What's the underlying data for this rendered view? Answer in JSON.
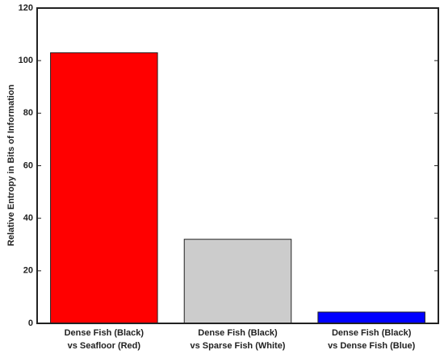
{
  "chart_data": {
    "type": "bar",
    "ylabel": "Relative Entropy in Bits of Information",
    "categories": [
      [
        "Dense Fish (Black)",
        "vs Seafloor (Red)"
      ],
      [
        "Dense Fish (Black)",
        "vs Sparse Fish (White)"
      ],
      [
        "Dense Fish (Black)",
        "vs Dense Fish (Blue)"
      ]
    ],
    "values": [
      103,
      32,
      4.3
    ],
    "colors": [
      "#ff0000",
      "#cccccc",
      "#0000ff"
    ],
    "ylim": [
      0,
      120
    ],
    "yticks": [
      0,
      20,
      40,
      60,
      80,
      100,
      120
    ]
  }
}
